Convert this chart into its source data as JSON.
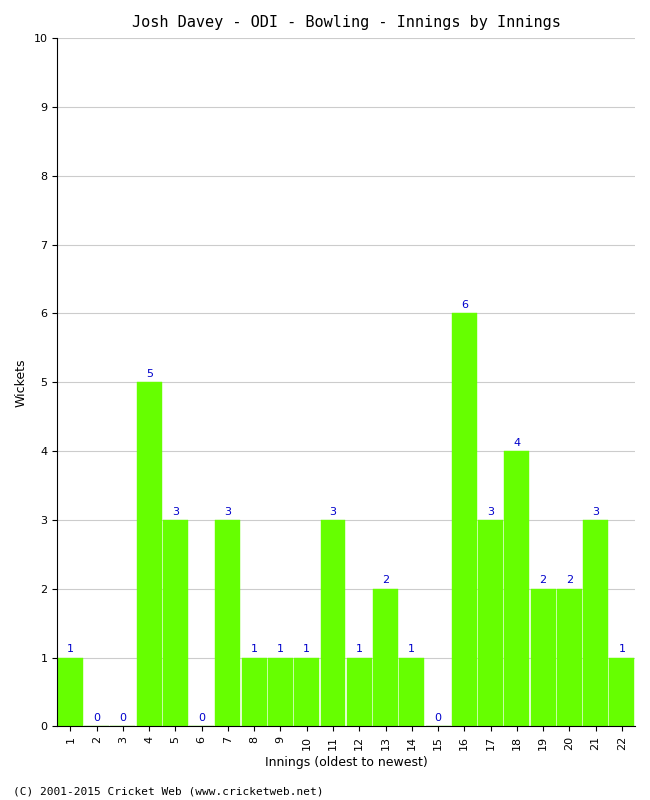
{
  "title": "Josh Davey - ODI - Bowling - Innings by Innings",
  "xlabel": "Innings (oldest to newest)",
  "ylabel": "Wickets",
  "categories": [
    1,
    2,
    3,
    4,
    5,
    6,
    7,
    8,
    9,
    10,
    11,
    12,
    13,
    14,
    15,
    16,
    17,
    18,
    19,
    20,
    21,
    22
  ],
  "values": [
    1,
    0,
    0,
    5,
    3,
    0,
    3,
    1,
    1,
    1,
    3,
    1,
    2,
    1,
    0,
    6,
    3,
    4,
    2,
    2,
    3,
    1
  ],
  "bar_color": "#66ff00",
  "bar_edge_color": "#66ff00",
  "label_color": "#0000cc",
  "ylim": [
    0,
    10
  ],
  "yticks": [
    0,
    1,
    2,
    3,
    4,
    5,
    6,
    7,
    8,
    9,
    10
  ],
  "background_color": "#ffffff",
  "grid_color": "#cccccc",
  "title_fontsize": 11,
  "label_fontsize": 9,
  "tick_fontsize": 8,
  "value_label_fontsize": 8,
  "footer": "(C) 2001-2015 Cricket Web (www.cricketweb.net)"
}
